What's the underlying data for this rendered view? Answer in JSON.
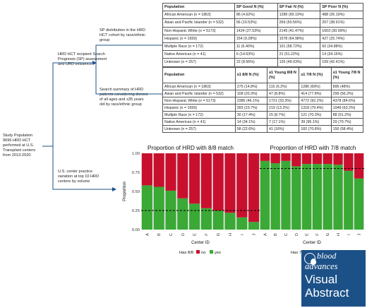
{
  "flow": {
    "study_population": "Study Population\n9696 HRD HCT\nperformed at U.S.\nTransplant centers\nfrom 2013-2020",
    "branch_sp": "HRD HCT recipient Search\nPrognosis (SP) assessment\nand URD existence",
    "branch_center": "U.S. center practice\nvariation at top 10 HRD\ncenters by volume",
    "desc_sp": "SP distribution in the HRD\nHCT cohort by race/ethnic\ngroup",
    "desc_search": "Search summary of HRD\npatients considering donors\nof all ages and ≤35 years\nold by race/ethnic group"
  },
  "sp_table": {
    "headers": [
      "Population",
      "SP Good N (%)",
      "SP Fair N (%)",
      "SP Poor N (%)"
    ],
    "rows": [
      [
        "African American (n = 1863)",
        "86 (4.62%)",
        "1289 (69.19%)",
        "488 (26.19%)"
      ],
      [
        "Asian and Pacific Islander (n = 532)",
        "56 (10.53%)",
        "269 (50.56%)",
        "207 (38.91%)"
      ],
      [
        "Non-Hispanic White (n = 5173)",
        "1424 (27.53%)",
        "2145 (41.47%)",
        "1603 (30.99%)"
      ],
      [
        "Hispanic (n = 1659)",
        "154 (9.28%)",
        "1078 (64.98%)",
        "427 (25.74%)"
      ],
      [
        "Multiple Race (n = 172)",
        "11 (6.40%)",
        "101 (58.72%)",
        "60 (34.88%)"
      ],
      [
        "Native American (n = 41)",
        "6 (14.63%)",
        "21 (51.22%)",
        "14 (34.15%)"
      ],
      [
        "Unknown (n = 257)",
        "22 (8.56%)",
        "126 (49.03%)",
        "109 (42.41%)"
      ]
    ]
  },
  "search_table": {
    "headers": [
      "Population",
      "≥1 8/8 N (%)",
      "≥1 Young 8/8 N (%)",
      "≥1 7/8 N (%)",
      "≥1 Young 7/8 N (%)"
    ],
    "rows": [
      [
        "African American (n = 1863)",
        "275 (14.8%)",
        "115 (6.2%)",
        "1286 (69%)",
        "895 (48%)"
      ],
      [
        "Asian and Pacific Islander (n = 532)",
        "108 (20.3%)",
        "47 (8.8%)",
        "414 (77.8%)",
        "299 (56.2%)"
      ],
      [
        "Non-Hispanic White (n = 5173)",
        "2385 (46.1%)",
        "1721 (33.3%)",
        "4772 (92.2%)",
        "4378 (84.6%)"
      ],
      [
        "Hispanic (n = 1659)",
        "393 (23.7%)",
        "219 (13.2%)",
        "1318 (79.4%)",
        "1049 (63.2%)"
      ],
      [
        "Multiple Race (n = 172)",
        "30 (17.4%)",
        "15 (8.7%)",
        "121 (70.3%)",
        "88 (51.2%)"
      ],
      [
        "Native American (n = 41)",
        "14 (34.1%)",
        "7 (17.1%)",
        "39 (95.1%)",
        "29 (70.7%)"
      ],
      [
        "Unknown (n = 257)",
        "58 (22.6%)",
        "41 (16%)",
        "182 (70.8%)",
        "150 (58.4%)"
      ]
    ]
  },
  "chart_data": [
    {
      "type": "bar",
      "stacked": true,
      "title": "Proportion of HRD with 8/8 match",
      "xlabel": "Center ID",
      "ylabel": "Proportion",
      "categories": [
        "A",
        "B",
        "C",
        "D",
        "E",
        "F",
        "G",
        "H",
        "I",
        "J"
      ],
      "series": [
        {
          "name": "no",
          "values": [
            0.42,
            0.44,
            0.49,
            0.59,
            0.66,
            0.72,
            0.75,
            0.78,
            0.84,
            0.9
          ]
        },
        {
          "name": "yes",
          "values": [
            0.58,
            0.56,
            0.51,
            0.41,
            0.34,
            0.28,
            0.25,
            0.22,
            0.16,
            0.1
          ]
        }
      ],
      "reference_line": 0.25,
      "ylim": [
        0,
        1
      ],
      "yticks": [
        "0.00",
        "0.25",
        "0.50",
        "0.75",
        "1.00"
      ],
      "legend": {
        "title": "Has 8/8",
        "position": "bottom"
      },
      "colors": {
        "no": "#c8102e",
        "yes": "#3aa935"
      }
    },
    {
      "type": "bar",
      "stacked": true,
      "title": "Proportion of HRD with 7/8 match",
      "xlabel": "Center ID",
      "ylabel": "Proportion",
      "categories": [
        "A",
        "B",
        "C",
        "D",
        "E",
        "F",
        "G",
        "H",
        "I",
        "J"
      ],
      "series": [
        {
          "name": "no",
          "values": [
            0.1,
            0.13,
            0.1,
            0.17,
            0.14,
            0.14,
            0.14,
            0.15,
            0.23,
            0.33
          ]
        },
        {
          "name": "yes",
          "values": [
            0.9,
            0.87,
            0.9,
            0.83,
            0.86,
            0.86,
            0.86,
            0.85,
            0.77,
            0.67
          ]
        }
      ],
      "reference_line": 0.8,
      "ylim": [
        0,
        1
      ],
      "yticks": [
        "0.00",
        "0.25",
        "0.50",
        "0.75",
        "1.00"
      ],
      "legend": {
        "title": "Has 7/8",
        "position": "bottom"
      },
      "colors": {
        "no": "#c8102e",
        "yes": "#3aa935"
      }
    }
  ],
  "logo": {
    "line1": "blood",
    "line2": "advances",
    "line3": "Visual",
    "line4": "Abstract",
    "color": "#1c5188"
  }
}
